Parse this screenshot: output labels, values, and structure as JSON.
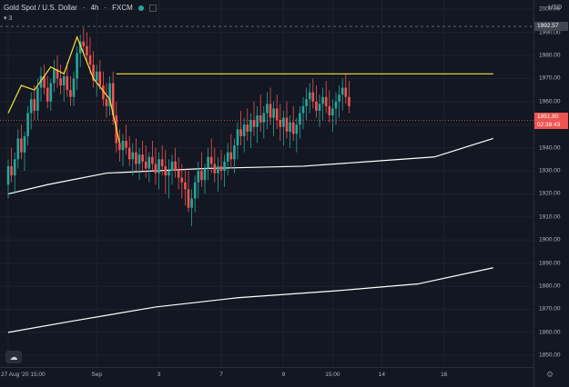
{
  "header": {
    "symbol": "Gold Spot / U.S. Dollar",
    "interval": "4h",
    "source": "FXCM",
    "indicator_count": "3",
    "currency": "USD"
  },
  "colors": {
    "background": "#131722",
    "up": "#26a69a",
    "down": "#ef5350",
    "drawing": "#f5e43b",
    "ma": "#ffffff",
    "crosshair": "#6a6d78",
    "price_line": "#ef5350",
    "price_label_bg": "#ef5350"
  },
  "price_label": {
    "price": "1951.80",
    "countdown": "02:38:43"
  },
  "crosshair_label": "1992.57",
  "chart_data": {
    "type": "candlestick",
    "title": "",
    "y_axis": {
      "side": "right",
      "min": 1845,
      "max": 2004,
      "ticks": [
        2000,
        1990,
        1980,
        1970,
        1960,
        1950,
        1940,
        1930,
        1920,
        1910,
        1900,
        1890,
        1880,
        1870,
        1860,
        1850
      ]
    },
    "x_axis": {
      "ticks": [
        {
          "label": "27 Aug '20  15:00",
          "bar": 0
        },
        {
          "label": "Sep",
          "bar": 27
        },
        {
          "label": "3",
          "bar": 46
        },
        {
          "label": "7",
          "bar": 65
        },
        {
          "label": "9",
          "bar": 84
        },
        {
          "label": "15:00",
          "bar": 99
        },
        {
          "label": "14",
          "bar": 114
        },
        {
          "label": "16",
          "bar": 133
        }
      ]
    },
    "candles": [
      [
        1924,
        1935,
        1918,
        1932
      ],
      [
        1932,
        1940,
        1925,
        1928
      ],
      [
        1928,
        1938,
        1920,
        1935
      ],
      [
        1935,
        1948,
        1931,
        1944
      ],
      [
        1944,
        1950,
        1935,
        1938
      ],
      [
        1938,
        1947,
        1930,
        1945
      ],
      [
        1945,
        1958,
        1941,
        1955
      ],
      [
        1955,
        1964,
        1948,
        1961
      ],
      [
        1961,
        1967,
        1952,
        1956
      ],
      [
        1956,
        1970,
        1952,
        1966
      ],
      [
        1966,
        1975,
        1960,
        1971
      ],
      [
        1971,
        1976,
        1963,
        1966
      ],
      [
        1966,
        1971,
        1957,
        1960
      ],
      [
        1960,
        1970,
        1956,
        1968
      ],
      [
        1968,
        1978,
        1964,
        1974
      ],
      [
        1974,
        1980,
        1966,
        1970
      ],
      [
        1970,
        1976,
        1963,
        1967
      ],
      [
        1967,
        1973,
        1960,
        1971
      ],
      [
        1971,
        1977,
        1962,
        1965
      ],
      [
        1965,
        1971,
        1958,
        1962
      ],
      [
        1962,
        1973,
        1958,
        1970
      ],
      [
        1970,
        1984,
        1965,
        1981
      ],
      [
        1981,
        1989,
        1975,
        1986
      ],
      [
        1986,
        1992,
        1980,
        1984
      ],
      [
        1984,
        1990,
        1977,
        1980
      ],
      [
        1980,
        1988,
        1972,
        1976
      ],
      [
        1976,
        1982,
        1966,
        1969
      ],
      [
        1969,
        1976,
        1962,
        1973
      ],
      [
        1973,
        1978,
        1965,
        1967
      ],
      [
        1967,
        1973,
        1958,
        1961
      ],
      [
        1961,
        1968,
        1953,
        1958
      ],
      [
        1958,
        1971,
        1954,
        1968
      ],
      [
        1968,
        1973,
        1950,
        1954
      ],
      [
        1954,
        1960,
        1938,
        1942
      ],
      [
        1942,
        1948,
        1934,
        1939
      ],
      [
        1939,
        1946,
        1932,
        1943
      ],
      [
        1943,
        1950,
        1937,
        1940
      ],
      [
        1940,
        1945,
        1932,
        1935
      ],
      [
        1935,
        1942,
        1928,
        1938
      ],
      [
        1938,
        1944,
        1930,
        1933
      ],
      [
        1933,
        1940,
        1926,
        1937
      ],
      [
        1937,
        1943,
        1930,
        1934
      ],
      [
        1934,
        1941,
        1927,
        1931
      ],
      [
        1931,
        1938,
        1925,
        1936
      ],
      [
        1936,
        1943,
        1930,
        1933
      ],
      [
        1933,
        1940,
        1924,
        1929
      ],
      [
        1929,
        1938,
        1922,
        1935
      ],
      [
        1935,
        1941,
        1928,
        1932
      ],
      [
        1932,
        1939,
        1920,
        1928
      ],
      [
        1928,
        1935,
        1918,
        1930
      ],
      [
        1930,
        1937,
        1924,
        1934
      ],
      [
        1934,
        1940,
        1927,
        1930
      ],
      [
        1930,
        1936,
        1922,
        1927
      ],
      [
        1927,
        1933,
        1918,
        1925
      ],
      [
        1925,
        1931,
        1915,
        1922
      ],
      [
        1922,
        1930,
        1912,
        1914
      ],
      [
        1914,
        1922,
        1906,
        1918
      ],
      [
        1918,
        1928,
        1912,
        1925
      ],
      [
        1925,
        1934,
        1918,
        1930
      ],
      [
        1930,
        1938,
        1923,
        1926
      ],
      [
        1926,
        1933,
        1920,
        1931
      ],
      [
        1931,
        1940,
        1926,
        1936
      ],
      [
        1936,
        1944,
        1929,
        1933
      ],
      [
        1933,
        1940,
        1925,
        1929
      ],
      [
        1929,
        1936,
        1921,
        1932
      ],
      [
        1932,
        1939,
        1926,
        1930
      ],
      [
        1930,
        1937,
        1923,
        1934
      ],
      [
        1934,
        1942,
        1928,
        1938
      ],
      [
        1938,
        1946,
        1931,
        1935
      ],
      [
        1935,
        1944,
        1929,
        1941
      ],
      [
        1941,
        1951,
        1935,
        1948
      ],
      [
        1948,
        1956,
        1941,
        1945
      ],
      [
        1945,
        1953,
        1938,
        1950
      ],
      [
        1950,
        1957,
        1943,
        1947
      ],
      [
        1947,
        1955,
        1940,
        1952
      ],
      [
        1952,
        1960,
        1945,
        1949
      ],
      [
        1949,
        1958,
        1942,
        1954
      ],
      [
        1954,
        1963,
        1947,
        1951
      ],
      [
        1951,
        1958,
        1944,
        1955
      ],
      [
        1955,
        1964,
        1948,
        1959
      ],
      [
        1959,
        1966,
        1950,
        1953
      ],
      [
        1953,
        1960,
        1945,
        1957
      ],
      [
        1957,
        1963,
        1948,
        1952
      ],
      [
        1952,
        1959,
        1943,
        1949
      ],
      [
        1949,
        1956,
        1941,
        1953
      ],
      [
        1953,
        1960,
        1944,
        1947
      ],
      [
        1947,
        1954,
        1940,
        1951
      ],
      [
        1951,
        1958,
        1943,
        1946
      ],
      [
        1946,
        1953,
        1938,
        1950
      ],
      [
        1950,
        1958,
        1944,
        1955
      ],
      [
        1955,
        1962,
        1948,
        1958
      ],
      [
        1958,
        1966,
        1952,
        1961
      ],
      [
        1961,
        1968,
        1955,
        1964
      ],
      [
        1964,
        1970,
        1957,
        1960
      ],
      [
        1960,
        1967,
        1953,
        1956
      ],
      [
        1956,
        1963,
        1949,
        1959
      ],
      [
        1959,
        1966,
        1952,
        1962
      ],
      [
        1962,
        1969,
        1955,
        1958
      ],
      [
        1958,
        1965,
        1951,
        1954
      ],
      [
        1954,
        1961,
        1947,
        1957
      ],
      [
        1957,
        1964,
        1950,
        1960
      ],
      [
        1960,
        1967,
        1953,
        1963
      ],
      [
        1963,
        1970,
        1956,
        1966
      ],
      [
        1966,
        1972,
        1959,
        1962
      ],
      [
        1962,
        1969,
        1955,
        1958
      ]
    ],
    "ma_fast": [
      [
        0,
        1920
      ],
      [
        12,
        1924
      ],
      [
        30,
        1929
      ],
      [
        60,
        1931
      ],
      [
        90,
        1932
      ],
      [
        110,
        1934
      ],
      [
        130,
        1936
      ],
      [
        148,
        1944
      ]
    ],
    "ma_slow": [
      [
        0,
        1860
      ],
      [
        20,
        1865
      ],
      [
        45,
        1871
      ],
      [
        70,
        1875
      ],
      [
        100,
        1878
      ],
      [
        125,
        1881
      ],
      [
        148,
        1888
      ]
    ],
    "drawings": {
      "zigzag": [
        [
          0,
          1955
        ],
        [
          4,
          1967
        ],
        [
          8,
          1965
        ],
        [
          13,
          1975
        ],
        [
          17,
          1972
        ],
        [
          21,
          1988
        ],
        [
          26,
          1970
        ],
        [
          31,
          1961
        ],
        [
          34,
          1942
        ]
      ],
      "horizontal": [
        [
          33,
          1972
        ],
        [
          148,
          1972
        ]
      ]
    }
  }
}
